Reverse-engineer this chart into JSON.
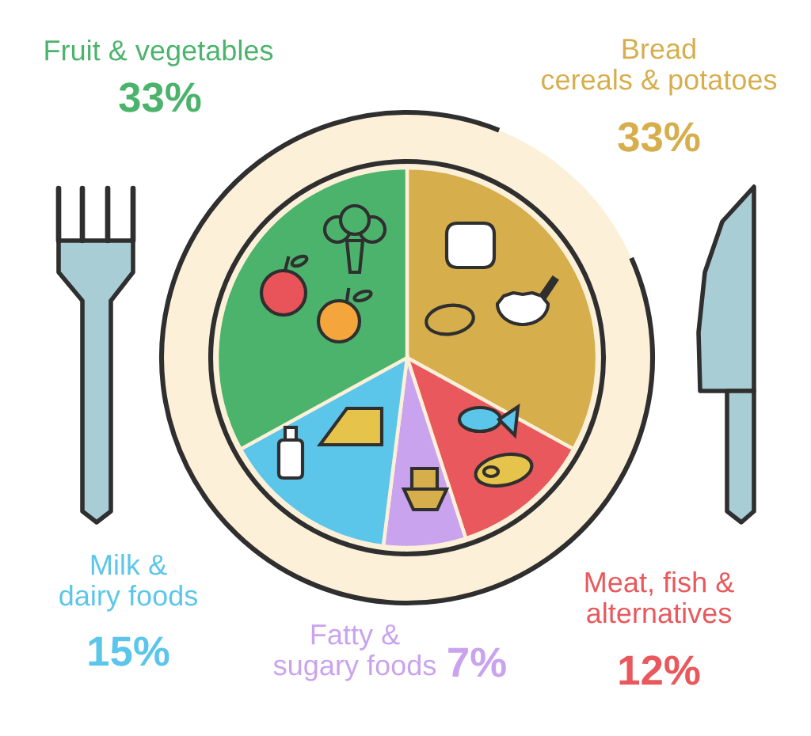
{
  "chart_data": {
    "type": "pie",
    "categories": [
      "Bread\ncereals & potatoes",
      "Meat, fish &\nalternatives",
      "Fatty &\nsugary foods",
      "Milk &\ndairy foods",
      "Fruit & vegetables"
    ],
    "values": [
      33,
      12,
      7,
      15,
      33
    ],
    "colors": [
      "#d6ae4c",
      "#e8585c",
      "#c9a3ee",
      "#5cc6ea",
      "#4cb36c"
    ],
    "value_labels": [
      "33%",
      "12%",
      "7%",
      "15%",
      "33%"
    ]
  }
}
